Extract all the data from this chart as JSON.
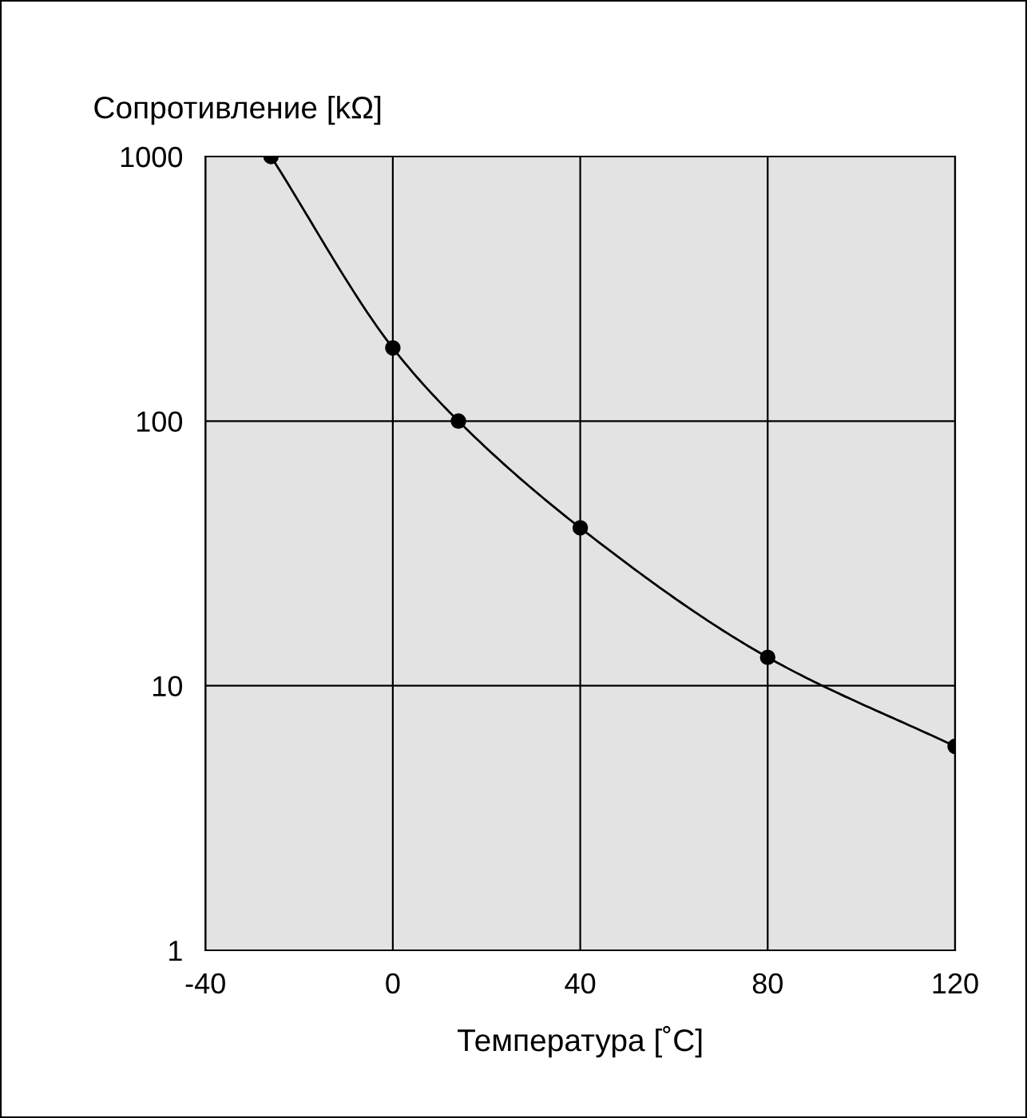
{
  "chart_data": {
    "type": "line",
    "xlabel": "Температура [˚C]",
    "ylabel": "Сопротивление [kΩ]",
    "x": [
      -26,
      0,
      14,
      40,
      80,
      120
    ],
    "series": [
      {
        "color": "#000000",
        "values": [
          1000,
          189,
          100,
          39.5,
          12.8,
          5.9
        ]
      }
    ],
    "log": "y",
    "xlim": [
      -40,
      120
    ],
    "xticks": [
      -40,
      0,
      40,
      80,
      120
    ],
    "ylim": [
      1,
      1000
    ],
    "yticks": [
      1,
      10,
      100,
      1000
    ],
    "grid": true,
    "marker": "circle",
    "line_style": "solid"
  }
}
